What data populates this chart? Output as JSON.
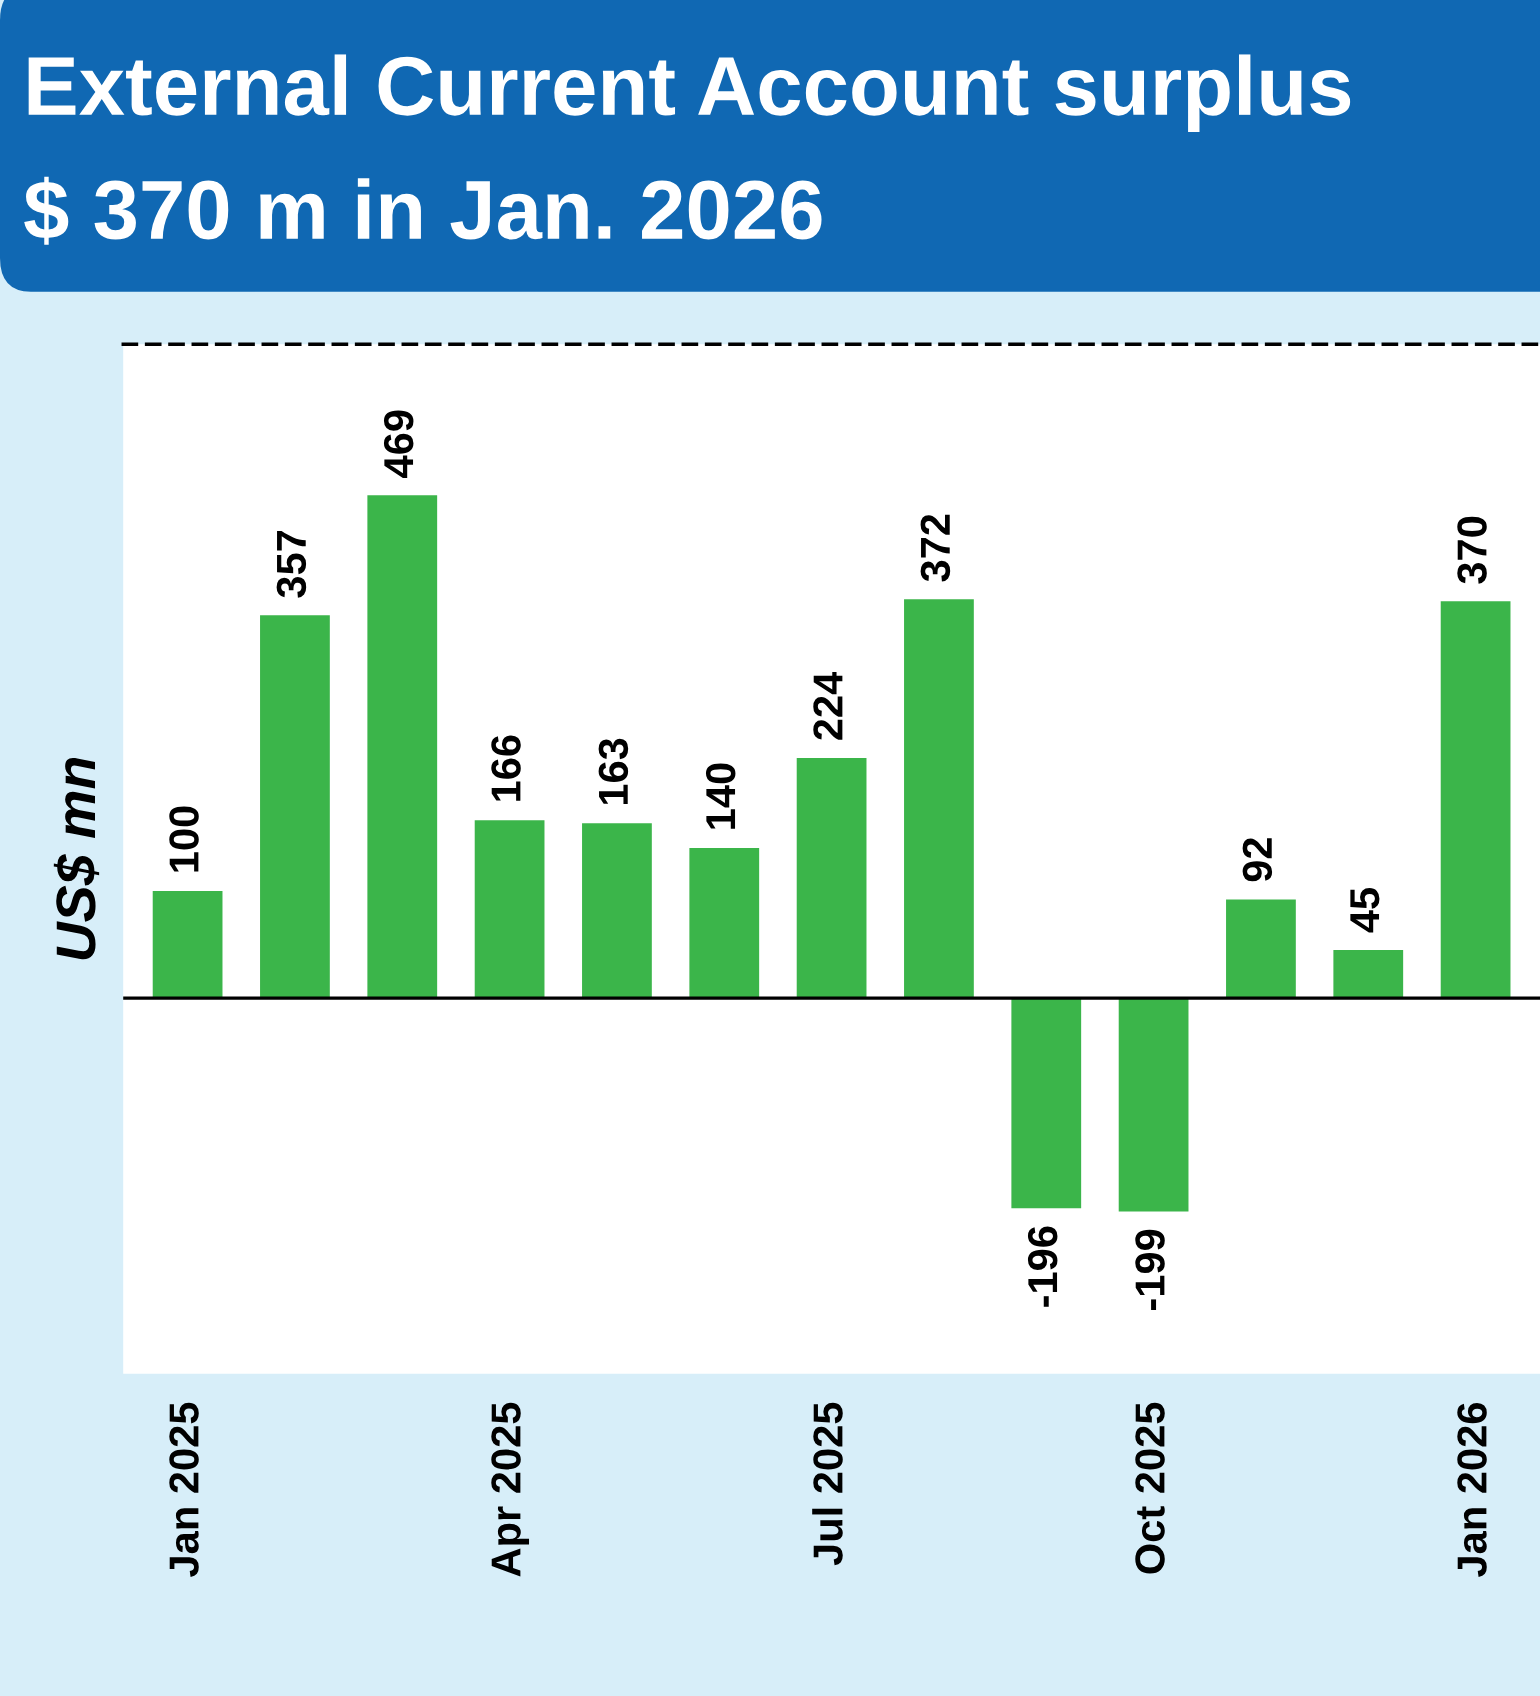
{
  "chart_data": {
    "type": "bar",
    "title": "External Current Account surplus",
    "subtitle": "$ 370 m in Jan. 2026",
    "ylabel": "US$ mn",
    "categories": [
      "Jan 2025",
      null,
      null,
      "Apr 2025",
      null,
      null,
      "Jul 2025",
      null,
      null,
      "Oct 2025",
      null,
      null,
      "Jan 2026"
    ],
    "values": [
      100,
      357,
      469,
      166,
      163,
      140,
      224,
      372,
      -196,
      -199,
      92,
      45,
      370
    ],
    "color": "#3bb54a",
    "data_labels": true,
    "grid": false,
    "legend": false
  }
}
